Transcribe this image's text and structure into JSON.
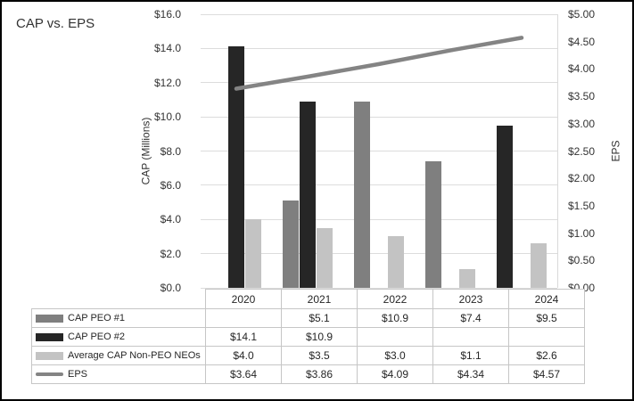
{
  "title": "CAP vs. EPS",
  "chart_data": {
    "type": "combo-bar-line",
    "title": "CAP vs. EPS",
    "categories": [
      "2020",
      "2021",
      "2022",
      "2023",
      "2024"
    ],
    "series": [
      {
        "name": "CAP PEO #1",
        "kind": "bar",
        "axis": "left",
        "color": "#7f7f7f",
        "swatch": "rect",
        "values": [
          null,
          5.1,
          10.9,
          7.4,
          9.5
        ],
        "bar_colors": [
          null,
          "#7f7f7f",
          "#7f7f7f",
          "#7f7f7f",
          "#262626"
        ],
        "table_labels": [
          "",
          "$5.1",
          "$10.9",
          "$7.4",
          "$9.5"
        ]
      },
      {
        "name": "CAP PEO #2",
        "kind": "bar",
        "axis": "left",
        "color": "#262626",
        "swatch": "rect",
        "values": [
          14.1,
          10.9,
          null,
          null,
          null
        ],
        "table_labels": [
          "$14.1",
          "$10.9",
          "",
          "",
          ""
        ]
      },
      {
        "name": "Average CAP Non-PEO NEOs",
        "kind": "bar",
        "axis": "left",
        "color": "#c3c3c3",
        "swatch": "rect",
        "values": [
          4.0,
          3.5,
          3.0,
          1.1,
          2.6
        ],
        "table_labels": [
          "$4.0",
          "$3.5",
          "$3.0",
          "$1.1",
          "$2.6"
        ]
      },
      {
        "name": "EPS",
        "kind": "line",
        "axis": "right",
        "color": "#848484",
        "swatch": "line",
        "values": [
          3.64,
          3.86,
          4.09,
          4.34,
          4.57
        ],
        "table_labels": [
          "$3.64",
          "$3.86",
          "$4.09",
          "$4.34",
          "$4.57"
        ]
      }
    ],
    "left_axis": {
      "title": "CAP (Millions)",
      "min": 0,
      "max": 16,
      "step": 2,
      "tick_values": [
        0,
        2,
        4,
        6,
        8,
        10,
        12,
        14,
        16
      ],
      "tick_labels": [
        "$0.0",
        "$2.0",
        "$4.0",
        "$6.0",
        "$8.0",
        "$10.0",
        "$12.0",
        "$14.0",
        "$16.0"
      ]
    },
    "right_axis": {
      "title": "EPS",
      "min": 0,
      "max": 5,
      "step": 0.5,
      "tick_values": [
        0,
        0.5,
        1,
        1.5,
        2,
        2.5,
        3,
        3.5,
        4,
        4.5,
        5
      ],
      "tick_labels": [
        "$0.00",
        "$0.50",
        "$1.00",
        "$1.50",
        "$2.00",
        "$2.50",
        "$3.00",
        "$3.50",
        "$4.00",
        "$4.50",
        "$5.00"
      ]
    },
    "grid": true,
    "legend_position": "table-left"
  },
  "colors": {
    "background": "#ffffff",
    "outer_border": "#000000",
    "gridline": "#dcdcdc",
    "table_border": "#c6c6c6",
    "text": "#262626"
  }
}
